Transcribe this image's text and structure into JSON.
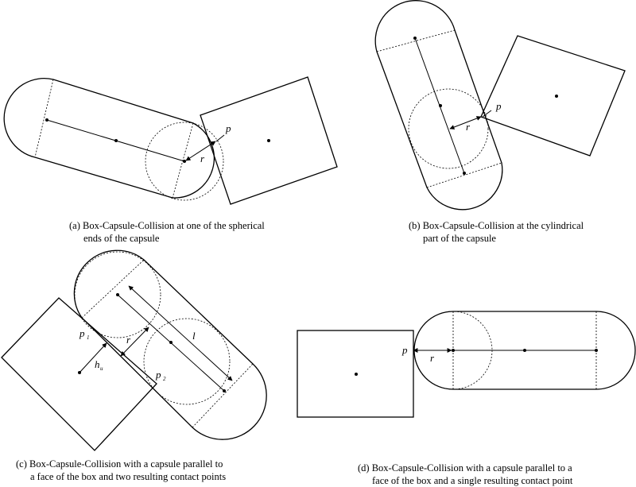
{
  "panels": {
    "a": {
      "caption_line1": "(a) Box-Capsule-Collision at one of the spherical",
      "caption_line2": "ends of the capsule",
      "label_p": "p",
      "label_r": "r"
    },
    "b": {
      "caption_line1": "(b) Box-Capsule-Collision at the cylindrical",
      "caption_line2": "part of the capsule",
      "label_p": "p",
      "label_r": "r"
    },
    "c": {
      "caption_line1": "(c) Box-Capsule-Collision with a capsule parallel to",
      "caption_line2": "a face of the box and two resulting contact points",
      "label_p1": "p",
      "label_p1_sub": "1",
      "label_p2": "p",
      "label_p2_sub": "2",
      "label_r": "r",
      "label_l": "l",
      "label_h": "h",
      "label_h_sub": "u"
    },
    "d": {
      "caption_line1": "(d) Box-Capsule-Collision with a capsule parallel to a",
      "caption_line2": "face of the box and a single resulting contact point",
      "label_p": "p",
      "label_r": "r"
    }
  }
}
